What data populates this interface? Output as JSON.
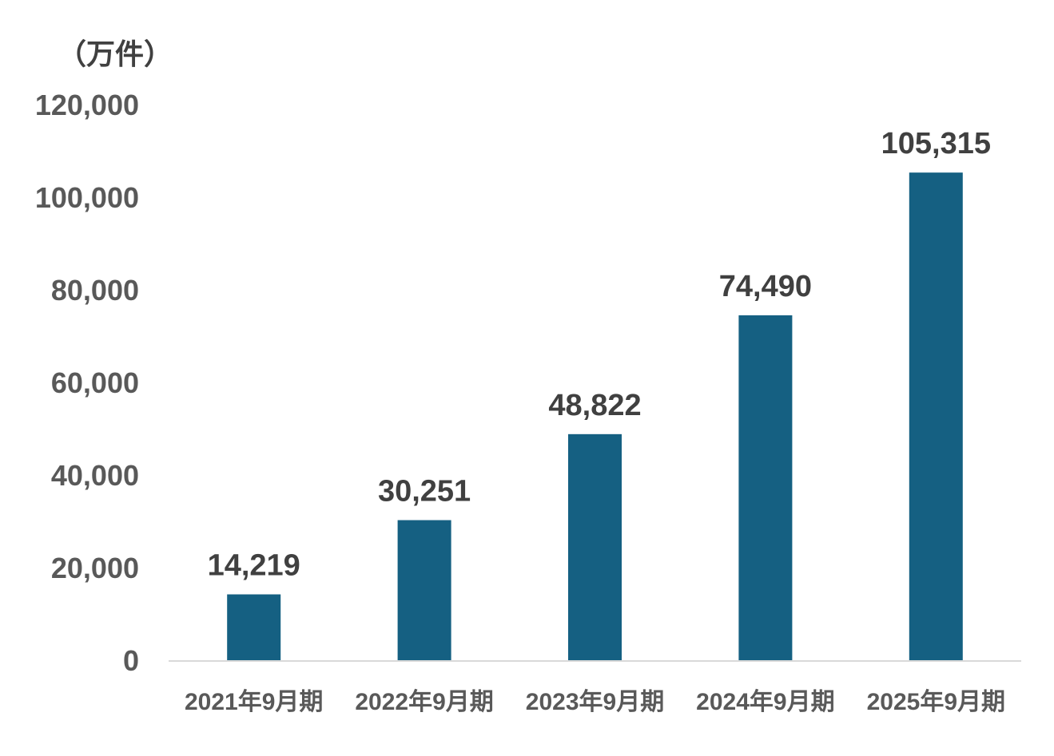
{
  "chart_data": {
    "type": "bar",
    "unit_label": "（万件）",
    "categories": [
      "2021年9月期",
      "2022年9月期",
      "2023年9月期",
      "2024年9月期",
      "2025年9月期"
    ],
    "values": [
      14219,
      30251,
      48822,
      74490,
      105315
    ],
    "value_labels": [
      "14,219",
      "30,251",
      "48,822",
      "74,490",
      "105,315"
    ],
    "y_ticks": [
      "0",
      "20,000",
      "40,000",
      "60,000",
      "80,000",
      "100,000",
      "120,000"
    ],
    "ylim": [
      0,
      120000
    ],
    "grid": false,
    "bar_color": "#156082",
    "axis_color": "#d9d9d9"
  }
}
